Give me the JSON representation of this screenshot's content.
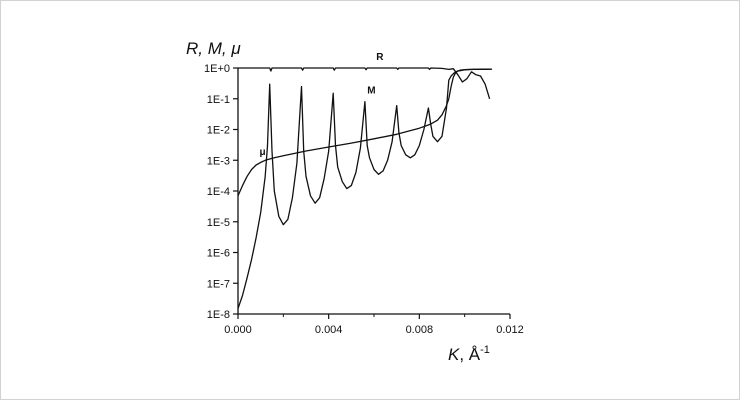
{
  "chart_data": {
    "type": "line",
    "title": "",
    "ylabel": "R, M, μ",
    "xlabel": "K",
    "xlabel_unit": ", Å",
    "xlabel_unit_exp": "-1",
    "xlim": [
      0,
      0.012
    ],
    "ylim": [
      1e-08,
      1
    ],
    "y_scale": "log",
    "grid": false,
    "x_ticks": [
      "0.000",
      "0.004",
      "0.008",
      "0.012"
    ],
    "x_tick_values": [
      0,
      0.004,
      0.008,
      0.012
    ],
    "y_ticks": [
      "1E-8",
      "1E-7",
      "1E-6",
      "1E-5",
      "1E-4",
      "1E-3",
      "1E-2",
      "1E-1",
      "1E+0"
    ],
    "y_tick_exponents": [
      -8,
      -7,
      -6,
      -5,
      -4,
      -3,
      -2,
      -1,
      0
    ],
    "series": [
      {
        "name": "R",
        "x": [
          0,
          0.0014,
          0.00145,
          0.0015,
          0.0028,
          0.00285,
          0.0029,
          0.0042,
          0.00425,
          0.0043,
          0.0056,
          0.00565,
          0.0057,
          0.007,
          0.00705,
          0.0071,
          0.0084,
          0.00845,
          0.0085,
          0.009,
          0.0093,
          0.0095,
          0.0097,
          0.0099,
          0.0101,
          0.0103,
          0.0105,
          0.0107,
          0.0109,
          0.0111
        ],
        "y": [
          1.0,
          1.0,
          0.8,
          1.0,
          1.0,
          0.85,
          1.0,
          1.0,
          0.85,
          1.0,
          1.0,
          0.88,
          1.0,
          1.0,
          0.9,
          1.0,
          1.0,
          0.9,
          1.0,
          0.97,
          0.9,
          0.95,
          0.6,
          0.35,
          0.45,
          0.75,
          0.6,
          0.55,
          0.3,
          0.1
        ]
      },
      {
        "name": "M",
        "x": [
          0,
          0.0002,
          0.0004,
          0.0006,
          0.0008,
          0.001,
          0.0012,
          0.0013,
          0.0014,
          0.0015,
          0.0016,
          0.0018,
          0.002,
          0.0022,
          0.0024,
          0.0026,
          0.0028,
          0.0029,
          0.003,
          0.0032,
          0.0034,
          0.0036,
          0.0038,
          0.004,
          0.0042,
          0.0043,
          0.0044,
          0.0046,
          0.0048,
          0.005,
          0.0052,
          0.0054,
          0.0056,
          0.0057,
          0.0058,
          0.006,
          0.0062,
          0.0064,
          0.0066,
          0.0068,
          0.007,
          0.0071,
          0.0072,
          0.0074,
          0.0076,
          0.0078,
          0.008,
          0.0082,
          0.0084,
          0.0085,
          0.0086,
          0.0088,
          0.009,
          0.0092,
          0.0093,
          0.0094,
          0.0095,
          0.0096,
          0.0097,
          0.0098,
          0.0099,
          0.01,
          0.0101,
          0.0102,
          0.0104,
          0.0106,
          0.0108,
          0.011,
          0.0112
        ],
        "y": [
          1.5e-08,
          4e-08,
          1.5e-07,
          6e-07,
          3e-06,
          2e-05,
          0.0003,
          0.003,
          0.3,
          0.002,
          0.0001,
          1.5e-05,
          8e-06,
          1.2e-05,
          6e-05,
          0.0008,
          0.25,
          0.002,
          0.0003,
          7e-05,
          4e-05,
          6e-05,
          0.00025,
          0.002,
          0.15,
          0.003,
          0.0006,
          0.0002,
          0.00012,
          0.00015,
          0.0004,
          0.0025,
          0.08,
          0.003,
          0.0012,
          0.0005,
          0.00035,
          0.00045,
          0.001,
          0.004,
          0.06,
          0.008,
          0.003,
          0.0015,
          0.0012,
          0.0015,
          0.003,
          0.01,
          0.05,
          0.015,
          0.006,
          0.004,
          0.006,
          0.05,
          0.4,
          0.55,
          0.65,
          0.75,
          0.8,
          0.82,
          0.85,
          0.87,
          0.88,
          0.89,
          0.9,
          0.9,
          0.91,
          0.91,
          0.92
        ]
      },
      {
        "name": "μ",
        "x": [
          0,
          0.0002,
          0.0004,
          0.0006,
          0.0008,
          0.001,
          0.0012,
          0.0014,
          0.0016,
          0.002,
          0.003,
          0.004,
          0.005,
          0.006,
          0.007,
          0.008,
          0.0085,
          0.0088,
          0.009,
          0.0092,
          0.0093,
          0.0094,
          0.0095,
          0.0096,
          0.0097,
          0.0098,
          0.01,
          0.0102,
          0.0104,
          0.0106,
          0.0108,
          0.011,
          0.0112
        ],
        "y": [
          7e-05,
          0.00015,
          0.0003,
          0.0005,
          0.0007,
          0.00085,
          0.001,
          0.0011,
          0.0012,
          0.0014,
          0.002,
          0.0027,
          0.0036,
          0.005,
          0.007,
          0.011,
          0.015,
          0.02,
          0.03,
          0.06,
          0.1,
          0.25,
          0.5,
          0.7,
          0.8,
          0.85,
          0.88,
          0.9,
          0.91,
          0.91,
          0.92,
          0.92,
          0.92
        ]
      }
    ],
    "annotations": [
      {
        "text": "R",
        "x": 0.0061,
        "y": 1.8
      },
      {
        "text": "M",
        "x": 0.0057,
        "y": 0.15
      },
      {
        "text": "μ",
        "x": 0.00095,
        "y": 0.0015
      }
    ]
  }
}
